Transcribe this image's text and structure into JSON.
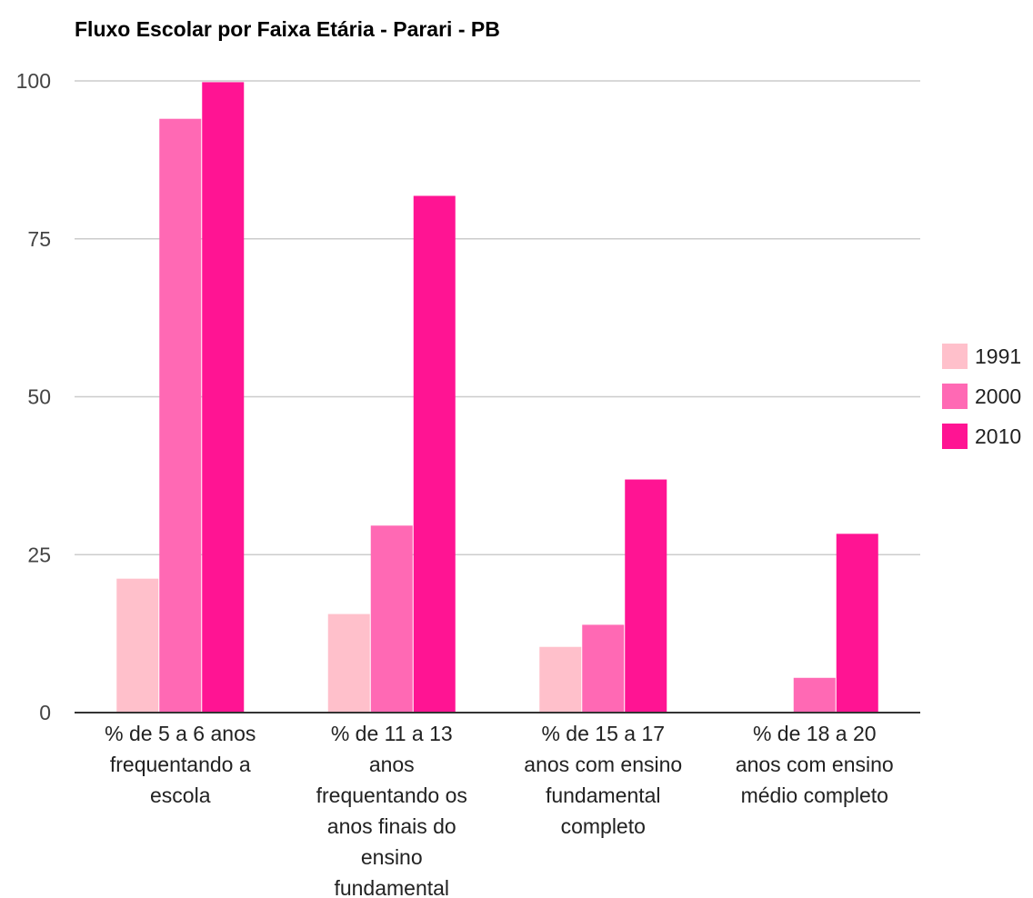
{
  "chart_data": {
    "type": "bar",
    "title": "Fluxo Escolar por Faixa Etária - Parari - PB",
    "xlabel": "",
    "ylabel": "",
    "ylim": [
      0,
      100
    ],
    "yticks": [
      "0",
      "25",
      "50",
      "75",
      "100"
    ],
    "grid": true,
    "legend_position": "right",
    "categories": [
      [
        "% de 5 a 6 anos",
        "frequentando a",
        "escola"
      ],
      [
        "% de 11 a 13",
        "anos",
        "frequentando os",
        "anos finais do",
        "ensino",
        "fundamental"
      ],
      [
        "% de 15 a 17",
        "anos com ensino",
        "fundamental",
        "completo"
      ],
      [
        "% de 18 a 20",
        "anos com ensino",
        "médio completo"
      ]
    ],
    "series": [
      {
        "name": "1991",
        "color": "#ffc0cb",
        "values": [
          21.2,
          15.6,
          10.4,
          0
        ]
      },
      {
        "name": "2000",
        "color": "#ff69b4",
        "values": [
          94.0,
          29.6,
          13.9,
          5.5
        ]
      },
      {
        "name": "2010",
        "color": "#ff1493",
        "values": [
          99.8,
          81.8,
          36.9,
          28.3
        ]
      }
    ]
  }
}
